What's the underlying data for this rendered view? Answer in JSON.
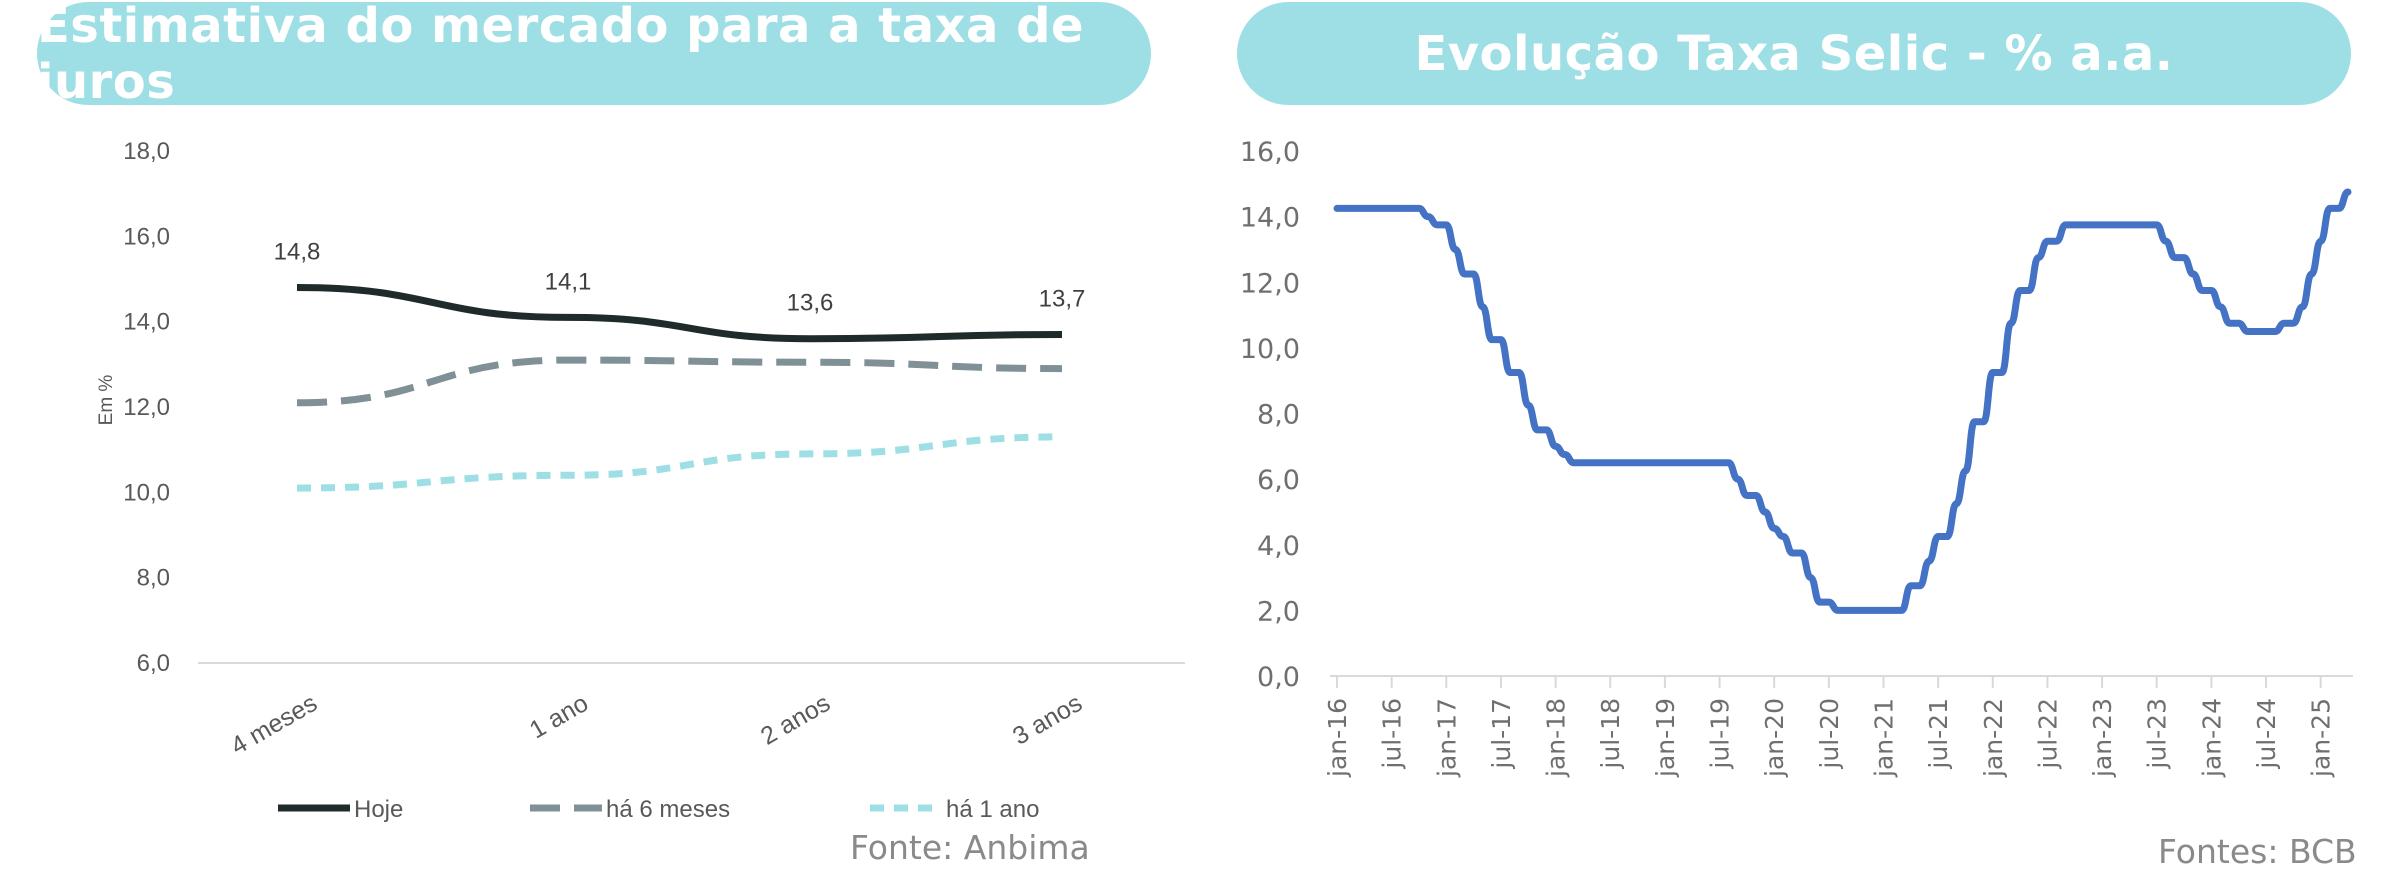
{
  "chart_data": [
    {
      "type": "line",
      "title": "Estimativa do mercado para a taxa de juros",
      "ylabel": "Em %",
      "ylim": [
        6.0,
        18.0
      ],
      "yticks": [
        "6,0",
        "8,0",
        "10,0",
        "12,0",
        "14,0",
        "16,0",
        "18,0"
      ],
      "categories": [
        "4 meses",
        "1 ano",
        "2 anos",
        "3 anos"
      ],
      "series": [
        {
          "name": "Hoje",
          "values": [
            14.8,
            14.1,
            13.6,
            13.7
          ],
          "labels": [
            "14,8",
            "14,1",
            "13,6",
            "13,7"
          ],
          "color": "#1f2a2a",
          "dash": "solid"
        },
        {
          "name": "há 6 meses",
          "values": [
            12.1,
            13.1,
            13.05,
            12.9
          ],
          "color": "#7f9097",
          "dash": "long-dash"
        },
        {
          "name": "há 1 ano",
          "values": [
            10.1,
            10.4,
            10.9,
            11.3
          ],
          "color": "#9ddfe5",
          "dash": "short-dash"
        }
      ],
      "grid": false,
      "legend": "bottom",
      "source": "Fonte: Anbima"
    },
    {
      "type": "line",
      "title": "Evolução Taxa Selic - % a.a.",
      "ylim": [
        0.0,
        16.0
      ],
      "yticks": [
        "0,0",
        "2,0",
        "4,0",
        "6,0",
        "8,0",
        "10,0",
        "12,0",
        "14,0",
        "16,0"
      ],
      "xticks": [
        "jan-16",
        "jul-16",
        "jan-17",
        "jul-17",
        "jan-18",
        "jul-18",
        "jan-19",
        "jul-19",
        "jan-20",
        "jul-20",
        "jan-21",
        "jul-21",
        "jan-22",
        "jul-22",
        "jan-23",
        "jul-23",
        "jan-24",
        "jul-24",
        "jan-25"
      ],
      "x_months": [
        0,
        6,
        12,
        18,
        24,
        30,
        36,
        42,
        48,
        54,
        60,
        66,
        72,
        78,
        84,
        90,
        96,
        102,
        108
      ],
      "series": [
        {
          "name": "Selic",
          "color": "#4472c4",
          "points": [
            [
              0,
              14.25
            ],
            [
              9,
              14.25
            ],
            [
              10,
              14.0
            ],
            [
              11,
              13.75
            ],
            [
              12,
              13.75
            ],
            [
              13,
              13.0
            ],
            [
              14,
              12.25
            ],
            [
              15,
              12.25
            ],
            [
              16,
              11.25
            ],
            [
              17,
              10.25
            ],
            [
              18,
              10.25
            ],
            [
              19,
              9.25
            ],
            [
              20,
              9.25
            ],
            [
              21,
              8.25
            ],
            [
              22,
              7.5
            ],
            [
              23,
              7.5
            ],
            [
              24,
              7.0
            ],
            [
              25,
              6.75
            ],
            [
              26,
              6.5
            ],
            [
              43,
              6.5
            ],
            [
              44,
              6.0
            ],
            [
              45,
              5.5
            ],
            [
              46,
              5.5
            ],
            [
              47,
              5.0
            ],
            [
              48,
              4.5
            ],
            [
              49,
              4.25
            ],
            [
              50,
              3.75
            ],
            [
              51,
              3.75
            ],
            [
              52,
              3.0
            ],
            [
              53,
              2.25
            ],
            [
              54,
              2.25
            ],
            [
              55,
              2.0
            ],
            [
              61,
              2.0
            ],
            [
              62,
              2.0
            ],
            [
              63,
              2.75
            ],
            [
              64,
              2.75
            ],
            [
              65,
              3.5
            ],
            [
              66,
              4.25
            ],
            [
              67,
              4.25
            ],
            [
              68,
              5.25
            ],
            [
              69,
              6.25
            ],
            [
              70,
              7.75
            ],
            [
              71,
              7.75
            ],
            [
              72,
              9.25
            ],
            [
              73,
              9.25
            ],
            [
              74,
              10.75
            ],
            [
              75,
              11.75
            ],
            [
              76,
              11.75
            ],
            [
              77,
              12.75
            ],
            [
              78,
              13.25
            ],
            [
              79,
              13.25
            ],
            [
              80,
              13.75
            ],
            [
              90,
              13.75
            ],
            [
              91,
              13.25
            ],
            [
              92,
              12.75
            ],
            [
              93,
              12.75
            ],
            [
              94,
              12.25
            ],
            [
              95,
              11.75
            ],
            [
              96,
              11.75
            ],
            [
              97,
              11.25
            ],
            [
              98,
              10.75
            ],
            [
              99,
              10.75
            ],
            [
              100,
              10.5
            ],
            [
              103,
              10.5
            ],
            [
              104,
              10.75
            ],
            [
              105,
              10.75
            ],
            [
              106,
              11.25
            ],
            [
              107,
              12.25
            ],
            [
              108,
              13.25
            ],
            [
              109,
              14.25
            ],
            [
              110,
              14.25
            ],
            [
              111,
              14.75
            ]
          ]
        }
      ],
      "grid": false,
      "legend": "none",
      "source": "Fontes: BCB"
    }
  ]
}
